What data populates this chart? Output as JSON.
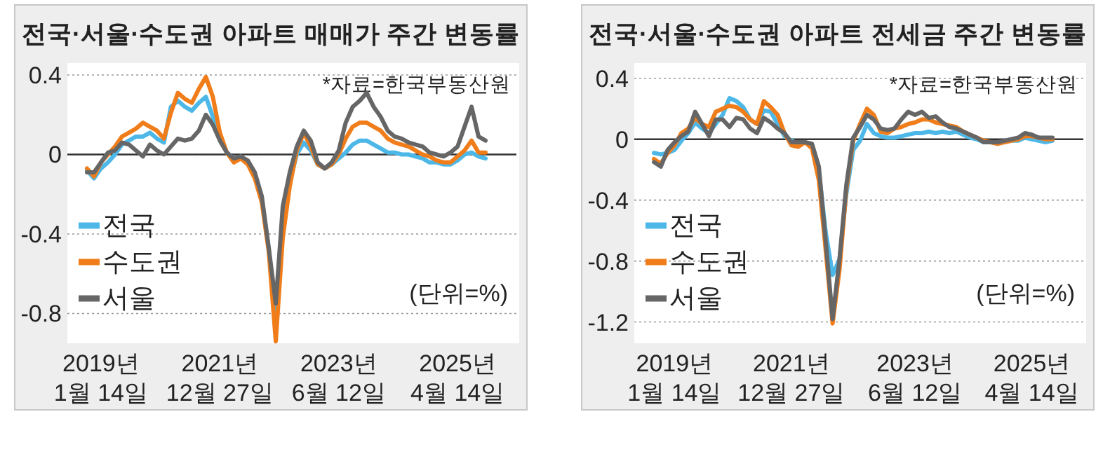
{
  "chart_data": [
    {
      "type": "line",
      "title": "전국·서울·수도권 아파트 매매가 주간 변동률",
      "annotations": [
        "*자료=한국부동산원",
        "(단위=%)"
      ],
      "categories": [
        null,
        null,
        "2019년\n1월 14일",
        null,
        null,
        null,
        null,
        null,
        null,
        null,
        null,
        null,
        null,
        null,
        null,
        null,
        null,
        null,
        null,
        "2021년\n12월 27일",
        null,
        null,
        null,
        null,
        null,
        null,
        null,
        null,
        null,
        null,
        null,
        null,
        null,
        null,
        null,
        null,
        "2023년\n6월 12일",
        null,
        null,
        null,
        null,
        null,
        null,
        null,
        null,
        null,
        null,
        null,
        null,
        null,
        null,
        null,
        null,
        "2025년\n4월 14일",
        null,
        null,
        null,
        null
      ],
      "ylim": [
        -0.95,
        0.46
      ],
      "yticks": [
        0.4,
        0,
        -0.4,
        -0.8
      ],
      "grid": "y",
      "legend": "left",
      "line_style": "solid",
      "marker": "none",
      "ref_lines": [
        {
          "axis": "y",
          "value": 0,
          "color": "#333333"
        }
      ],
      "series": [
        {
          "name": "전국",
          "color": "#4db8e8",
          "values": [
            -0.08,
            -0.12,
            -0.07,
            -0.04,
            0,
            0.05,
            0.07,
            0.09,
            0.09,
            0.11,
            0.08,
            0.06,
            0.24,
            0.27,
            0.24,
            0.22,
            0.26,
            0.29,
            0.19,
            0.08,
            0.01,
            -0.02,
            -0.01,
            -0.04,
            -0.11,
            -0.22,
            -0.48,
            -0.82,
            -0.35,
            -0.14,
            0,
            0.06,
            0.02,
            -0.05,
            -0.07,
            -0.05,
            -0.02,
            0.01,
            0.05,
            0.07,
            0.07,
            0.05,
            0.03,
            0.01,
            0.01,
            0,
            0,
            -0.01,
            -0.02,
            -0.04,
            -0.04,
            -0.05,
            -0.05,
            -0.03,
            0,
            0.01,
            -0.01,
            -0.02
          ]
        },
        {
          "name": "수도권",
          "color": "#f07d1a",
          "values": [
            -0.07,
            -0.11,
            -0.04,
            0,
            0.04,
            0.09,
            0.11,
            0.13,
            0.16,
            0.14,
            0.12,
            0.08,
            0.21,
            0.31,
            0.28,
            0.26,
            0.33,
            0.39,
            0.29,
            0.11,
            0.01,
            -0.04,
            -0.02,
            -0.05,
            -0.12,
            -0.24,
            -0.49,
            -0.94,
            -0.42,
            -0.16,
            0.02,
            0.11,
            0.04,
            -0.05,
            -0.07,
            -0.05,
            0,
            0.08,
            0.14,
            0.16,
            0.16,
            0.14,
            0.12,
            0.08,
            0.06,
            0.05,
            0.04,
            0.02,
            0,
            -0.01,
            -0.03,
            -0.04,
            -0.04,
            -0.01,
            0.02,
            0.07,
            0.01,
            0.01
          ]
        },
        {
          "name": "서울",
          "color": "#666666",
          "values": [
            -0.09,
            -0.09,
            -0.04,
            0.01,
            0.02,
            0.06,
            0.05,
            0.02,
            -0.01,
            0.05,
            0.02,
            0,
            0.04,
            0.08,
            0.07,
            0.08,
            0.12,
            0.2,
            0.15,
            0.07,
            0.01,
            -0.02,
            -0.01,
            -0.03,
            -0.09,
            -0.21,
            -0.47,
            -0.75,
            -0.26,
            -0.09,
            0.04,
            0.12,
            0.07,
            -0.04,
            -0.07,
            -0.04,
            0.02,
            0.16,
            0.24,
            0.27,
            0.31,
            0.24,
            0.19,
            0.12,
            0.09,
            0.08,
            0.06,
            0.05,
            0.04,
            0.01,
            0,
            -0.01,
            0.01,
            0.04,
            0.14,
            0.24,
            0.09,
            0.07
          ]
        }
      ]
    },
    {
      "type": "line",
      "title": "전국·서울·수도권 아파트 전세금 주간 변동률",
      "annotations": [
        "*자료=한국부동산원",
        "(단위=%)"
      ],
      "categories": [
        null,
        null,
        null,
        "2019년\n1월 14일",
        null,
        null,
        null,
        null,
        null,
        null,
        null,
        null,
        null,
        null,
        null,
        null,
        null,
        null,
        null,
        null,
        "2021년\n12월 27일",
        null,
        null,
        null,
        null,
        null,
        null,
        null,
        null,
        null,
        null,
        null,
        null,
        null,
        null,
        null,
        null,
        null,
        "2023년\n6월 12일",
        null,
        null,
        null,
        null,
        null,
        null,
        null,
        null,
        null,
        null,
        null,
        null,
        null,
        null,
        null,
        null,
        "2025년\n4월 14일",
        null,
        null,
        null
      ],
      "ylim": [
        -1.34,
        0.5
      ],
      "yticks": [
        0.4,
        0,
        -0.4,
        -0.8,
        -1.2
      ],
      "grid": "y",
      "legend": "left",
      "line_style": "solid",
      "marker": "none",
      "ref_lines": [
        {
          "axis": "y",
          "value": 0,
          "color": "#333333"
        }
      ],
      "series": [
        {
          "name": "전국",
          "color": "#4db8e8",
          "values": [
            -0.09,
            -0.1,
            -0.09,
            -0.07,
            -0.01,
            0.04,
            0.11,
            0.07,
            0.04,
            0.1,
            0.16,
            0.27,
            0.25,
            0.21,
            0.13,
            0.1,
            0.19,
            0.18,
            0.1,
            0.02,
            -0.01,
            -0.03,
            -0.02,
            -0.04,
            -0.21,
            -0.61,
            -0.89,
            -0.79,
            -0.36,
            -0.07,
            -0.01,
            0.1,
            0.04,
            0.02,
            0.01,
            0.01,
            0.02,
            0.03,
            0.04,
            0.04,
            0.05,
            0.04,
            0.05,
            0.04,
            0.05,
            0.03,
            0.01,
            0,
            -0.02,
            -0.02,
            -0.02,
            -0.02,
            -0.01,
            -0.01,
            0.01,
            0,
            -0.01,
            -0.02,
            -0.01
          ]
        },
        {
          "name": "수도권",
          "color": "#f07d1a",
          "values": [
            -0.13,
            -0.16,
            -0.09,
            -0.04,
            0.04,
            0.07,
            0.14,
            0.1,
            0.08,
            0.18,
            0.2,
            0.22,
            0.21,
            0.18,
            0.13,
            0.1,
            0.25,
            0.21,
            0.16,
            0.04,
            -0.04,
            -0.05,
            -0.02,
            -0.06,
            -0.27,
            -0.73,
            -1.21,
            -0.86,
            -0.33,
            -0.01,
            0.1,
            0.2,
            0.16,
            0.05,
            0.04,
            0.07,
            0.08,
            0.1,
            0.11,
            0.13,
            0.13,
            0.11,
            0.1,
            0.09,
            0.08,
            0.05,
            0.03,
            0.01,
            -0.01,
            -0.02,
            -0.03,
            -0.02,
            -0.01,
            0,
            0.02,
            0.02,
            0.01,
            0,
            0
          ]
        },
        {
          "name": "서울",
          "color": "#666666",
          "values": [
            -0.15,
            -0.18,
            -0.07,
            -0.02,
            0.02,
            0.05,
            0.18,
            0.1,
            0.02,
            0.13,
            0.13,
            0.08,
            0.14,
            0.13,
            0.07,
            0.04,
            0.14,
            0.11,
            0.07,
            0.04,
            -0.02,
            -0.02,
            -0.02,
            -0.03,
            -0.18,
            -0.67,
            -1.18,
            -0.79,
            -0.3,
            0.01,
            0.08,
            0.16,
            0.13,
            0.07,
            0.06,
            0.07,
            0.13,
            0.18,
            0.16,
            0.18,
            0.14,
            0.15,
            0.11,
            0.08,
            0.07,
            0.05,
            0.03,
            0.01,
            -0.02,
            -0.02,
            -0.02,
            -0.01,
            0,
            0.01,
            0.04,
            0.03,
            0.01,
            0.01,
            0.01
          ]
        }
      ]
    }
  ]
}
